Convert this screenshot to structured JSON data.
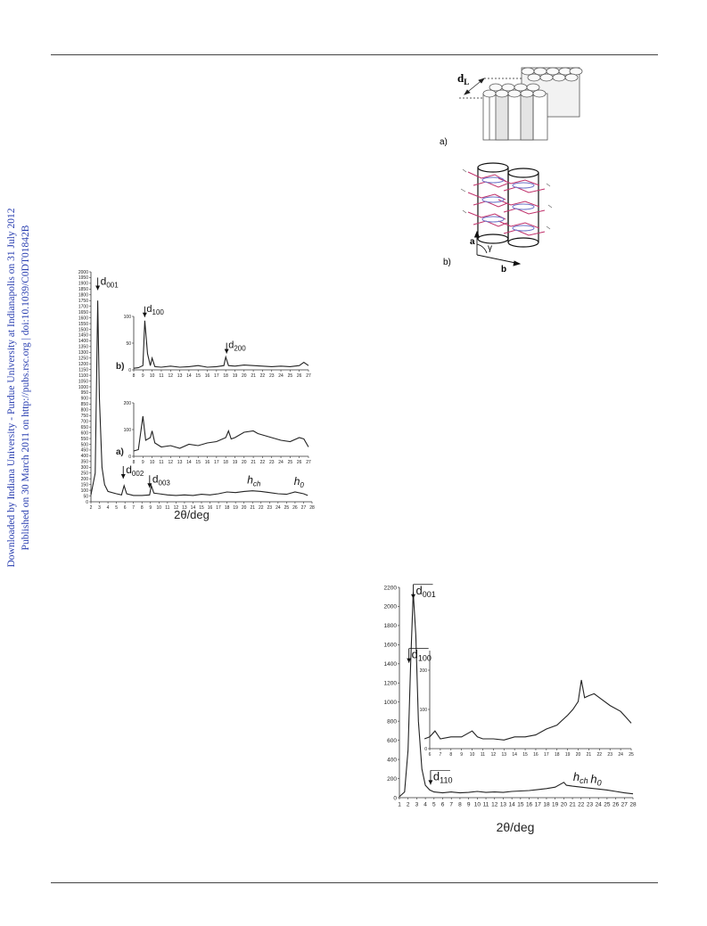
{
  "sidebar": {
    "line1": "Downloaded by Indiana University - Purdue University at Indianapolis on 31 July 2012",
    "line2": "Published on 30 March 2011 on http://pubs.rsc.org | doi:10.1039/C0DT01842B"
  },
  "figure_a_b": {
    "label_a": "a)",
    "label_b": "b)",
    "dL": "d",
    "dL_sub": "L",
    "axis_a": "a",
    "axis_b": "b",
    "angle": "γ"
  },
  "chart_data": [
    {
      "type": "line",
      "title": "",
      "xlabel": "2θ/deg",
      "ylabel": "",
      "xlim": [
        2,
        28
      ],
      "ylim": [
        0,
        2000
      ],
      "yticks": [
        0,
        50,
        100,
        150,
        200,
        250,
        300,
        350,
        400,
        450,
        500,
        550,
        600,
        650,
        700,
        750,
        800,
        850,
        900,
        950,
        1000,
        1050,
        1100,
        1150,
        1200,
        1250,
        1300,
        1350,
        1400,
        1450,
        1500,
        1550,
        1600,
        1650,
        1700,
        1750,
        1800,
        1850,
        1900,
        1950,
        2000
      ],
      "xticks": [
        2,
        3,
        4,
        5,
        6,
        7,
        8,
        9,
        10,
        11,
        12,
        13,
        14,
        15,
        16,
        17,
        18,
        19,
        20,
        21,
        22,
        23,
        24,
        25,
        26,
        27,
        28
      ],
      "series": [
        {
          "values": [
            [
              2,
              60
            ],
            [
              2.5,
              250
            ],
            [
              2.8,
              1750
            ],
            [
              3.0,
              900
            ],
            [
              3.3,
              300
            ],
            [
              3.6,
              150
            ],
            [
              4,
              90
            ],
            [
              5,
              70
            ],
            [
              5.6,
              60
            ],
            [
              5.9,
              140
            ],
            [
              6.2,
              70
            ],
            [
              7,
              55
            ],
            [
              8,
              55
            ],
            [
              8.9,
              60
            ],
            [
              9.1,
              140
            ],
            [
              9.4,
              75
            ],
            [
              10,
              70
            ],
            [
              11,
              60
            ],
            [
              12,
              55
            ],
            [
              13,
              60
            ],
            [
              14,
              55
            ],
            [
              15,
              65
            ],
            [
              16,
              60
            ],
            [
              17,
              70
            ],
            [
              18,
              85
            ],
            [
              19,
              80
            ],
            [
              20,
              90
            ],
            [
              21,
              95
            ],
            [
              22,
              90
            ],
            [
              23,
              80
            ],
            [
              24,
              70
            ],
            [
              25,
              65
            ],
            [
              26,
              85
            ],
            [
              27,
              70
            ],
            [
              27.5,
              55
            ]
          ]
        }
      ],
      "annotations": [
        {
          "label": "d",
          "sub": "001",
          "x": 2.8
        },
        {
          "label": "d",
          "sub": "002",
          "x": 5.8
        },
        {
          "label": "d",
          "sub": "003",
          "x": 8.9
        },
        {
          "label": "h",
          "sub": "ch",
          "x": 21
        },
        {
          "label": "h",
          "sub": "0",
          "x": 26.5
        }
      ],
      "insets": [
        {
          "label": "b)",
          "xlim": [
            8,
            27
          ],
          "ylim": [
            0,
            100
          ],
          "yticks": [
            0,
            50,
            100
          ],
          "xticks": [
            8,
            9,
            10,
            11,
            12,
            13,
            14,
            15,
            16,
            17,
            18,
            19,
            20,
            21,
            22,
            23,
            24,
            25,
            26,
            27
          ],
          "values": [
            [
              8,
              3
            ],
            [
              8.5,
              4
            ],
            [
              9,
              8
            ],
            [
              9.2,
              92
            ],
            [
              9.5,
              30
            ],
            [
              9.8,
              8
            ],
            [
              10,
              22
            ],
            [
              10.3,
              6
            ],
            [
              11,
              5
            ],
            [
              12,
              7
            ],
            [
              13,
              5
            ],
            [
              14,
              6
            ],
            [
              15,
              8
            ],
            [
              16,
              5
            ],
            [
              17,
              6
            ],
            [
              17.8,
              8
            ],
            [
              18,
              24
            ],
            [
              18.3,
              8
            ],
            [
              19,
              7
            ],
            [
              20,
              9
            ],
            [
              21,
              8
            ],
            [
              22,
              7
            ],
            [
              23,
              6
            ],
            [
              24,
              7
            ],
            [
              25,
              6
            ],
            [
              26,
              8
            ],
            [
              26.5,
              14
            ],
            [
              27,
              8
            ]
          ],
          "annotations": [
            {
              "label": "d",
              "sub": "100",
              "x": 9.2
            },
            {
              "label": "d",
              "sub": "200",
              "x": 18.1
            }
          ]
        },
        {
          "label": "a)",
          "xlim": [
            8,
            27
          ],
          "ylim": [
            0,
            200
          ],
          "yticks": [
            0,
            100,
            200
          ],
          "xticks": [
            8,
            9,
            10,
            11,
            12,
            13,
            14,
            15,
            16,
            17,
            18,
            19,
            20,
            21,
            22,
            23,
            24,
            25,
            26,
            27
          ],
          "values": [
            [
              8,
              20
            ],
            [
              8.5,
              25
            ],
            [
              9,
              150
            ],
            [
              9.3,
              60
            ],
            [
              9.8,
              70
            ],
            [
              10,
              95
            ],
            [
              10.3,
              50
            ],
            [
              11,
              35
            ],
            [
              12,
              40
            ],
            [
              13,
              30
            ],
            [
              14,
              45
            ],
            [
              15,
              40
            ],
            [
              16,
              50
            ],
            [
              17,
              55
            ],
            [
              18,
              70
            ],
            [
              18.3,
              95
            ],
            [
              18.6,
              65
            ],
            [
              19,
              70
            ],
            [
              20,
              90
            ],
            [
              21,
              95
            ],
            [
              21.5,
              85
            ],
            [
              22,
              80
            ],
            [
              23,
              70
            ],
            [
              24,
              60
            ],
            [
              25,
              55
            ],
            [
              26,
              70
            ],
            [
              26.5,
              65
            ],
            [
              27,
              35
            ]
          ]
        }
      ]
    },
    {
      "type": "line",
      "title": "",
      "xlabel": "2θ/deg",
      "ylabel": "",
      "xlim": [
        1,
        28
      ],
      "ylim": [
        0,
        2200
      ],
      "yticks": [
        0,
        200,
        400,
        600,
        800,
        1000,
        1200,
        1400,
        1600,
        1800,
        2000,
        2200
      ],
      "xticks": [
        1,
        2,
        3,
        4,
        5,
        6,
        7,
        8,
        9,
        10,
        11,
        12,
        13,
        14,
        15,
        16,
        17,
        18,
        19,
        20,
        21,
        22,
        23,
        24,
        25,
        26,
        27,
        28
      ],
      "series": [
        {
          "values": [
            [
              1,
              10
            ],
            [
              1.6,
              60
            ],
            [
              2.0,
              500
            ],
            [
              2.3,
              1400
            ],
            [
              2.6,
              2150
            ],
            [
              2.9,
              1700
            ],
            [
              3.2,
              800
            ],
            [
              3.6,
              300
            ],
            [
              4,
              130
            ],
            [
              4.5,
              80
            ],
            [
              5,
              60
            ],
            [
              5.5,
              55
            ],
            [
              6,
              50
            ],
            [
              7,
              60
            ],
            [
              8,
              50
            ],
            [
              9,
              55
            ],
            [
              10,
              65
            ],
            [
              11,
              55
            ],
            [
              12,
              60
            ],
            [
              13,
              55
            ],
            [
              14,
              65
            ],
            [
              15,
              70
            ],
            [
              16,
              75
            ],
            [
              17,
              85
            ],
            [
              18,
              95
            ],
            [
              19,
              110
            ],
            [
              20,
              160
            ],
            [
              20.3,
              130
            ],
            [
              21,
              120
            ],
            [
              22,
              110
            ],
            [
              23,
              100
            ],
            [
              24,
              90
            ],
            [
              25,
              80
            ],
            [
              26,
              65
            ],
            [
              27,
              50
            ],
            [
              28,
              40
            ]
          ]
        }
      ],
      "annotations": [
        {
          "label": "d",
          "sub": "001",
          "x": 2.6
        },
        {
          "label": "d",
          "sub": "100",
          "x": 2.1
        },
        {
          "label": "d",
          "sub": "110",
          "x": 4.6
        },
        {
          "label": "h",
          "sub": "ch",
          "x": 21.5
        },
        {
          "label": "h",
          "sub": "0",
          "x": 23.5
        }
      ],
      "insets": [
        {
          "xlim": [
            6,
            25
          ],
          "ylim": [
            0,
            250
          ],
          "yticks": [
            0,
            100,
            200
          ],
          "xticks": [
            6,
            7,
            8,
            9,
            10,
            11,
            12,
            13,
            14,
            15,
            16,
            17,
            18,
            19,
            20,
            21,
            22,
            23,
            24,
            25
          ],
          "values": [
            [
              5.5,
              25
            ],
            [
              6,
              30
            ],
            [
              6.5,
              45
            ],
            [
              7,
              25
            ],
            [
              8,
              30
            ],
            [
              9,
              30
            ],
            [
              10,
              45
            ],
            [
              10.5,
              30
            ],
            [
              11,
              25
            ],
            [
              12,
              25
            ],
            [
              13,
              22
            ],
            [
              14,
              30
            ],
            [
              15,
              30
            ],
            [
              16,
              35
            ],
            [
              17,
              50
            ],
            [
              18,
              60
            ],
            [
              19,
              85
            ],
            [
              19.5,
              100
            ],
            [
              20,
              120
            ],
            [
              20.3,
              175
            ],
            [
              20.6,
              130
            ],
            [
              21,
              135
            ],
            [
              21.5,
              140
            ],
            [
              22,
              130
            ],
            [
              23,
              110
            ],
            [
              24,
              95
            ],
            [
              24.5,
              80
            ],
            [
              25,
              65
            ]
          ]
        }
      ]
    }
  ]
}
